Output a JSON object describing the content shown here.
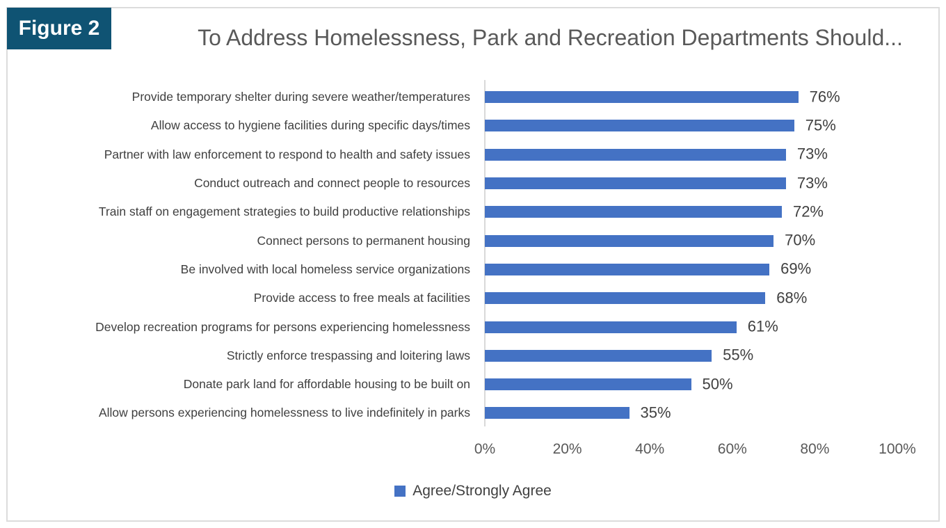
{
  "figure_label": "Figure 2",
  "colors": {
    "bar": "#4472C4",
    "figure_tag_bg": "#0F5373",
    "axis_line": "#D9D9D9",
    "title_text": "#595959",
    "label_text": "#3F3F3F",
    "value_text": "#404040",
    "frame_border": "#DCDCDC"
  },
  "chart_data": {
    "type": "bar",
    "orientation": "horizontal",
    "title": "To Address Homelessness, Park and Recreation Departments Should...",
    "categories": [
      "Provide temporary shelter during severe weather/temperatures",
      "Allow access to hygiene facilities during specific days/times",
      "Partner with law enforcement to respond to health and safety issues",
      "Conduct outreach and connect people to resources",
      "Train staff on engagement strategies to build productive relationships",
      "Connect persons to permanent housing",
      "Be involved with local homeless service organizations",
      "Provide access to free meals at facilities",
      "Develop recreation programs for persons experiencing homelessness",
      "Strictly enforce trespassing and loitering laws",
      "Donate park land for affordable housing to be built on",
      "Allow persons experiencing homelessness to live indefinitely in parks"
    ],
    "values": [
      76,
      75,
      73,
      73,
      72,
      70,
      69,
      68,
      61,
      55,
      50,
      35
    ],
    "value_labels": [
      "76%",
      "75%",
      "73%",
      "73%",
      "72%",
      "70%",
      "69%",
      "68%",
      "61%",
      "55%",
      "50%",
      "35%"
    ],
    "xlabel": "",
    "ylabel": "",
    "xlim": [
      0,
      100
    ],
    "x_ticks": [
      "0%",
      "20%",
      "40%",
      "60%",
      "80%",
      "100%"
    ],
    "grid": false,
    "legend": {
      "position": "bottom",
      "entries": [
        {
          "label": "Agree/Strongly Agree",
          "color": "#4472C4"
        }
      ]
    }
  }
}
